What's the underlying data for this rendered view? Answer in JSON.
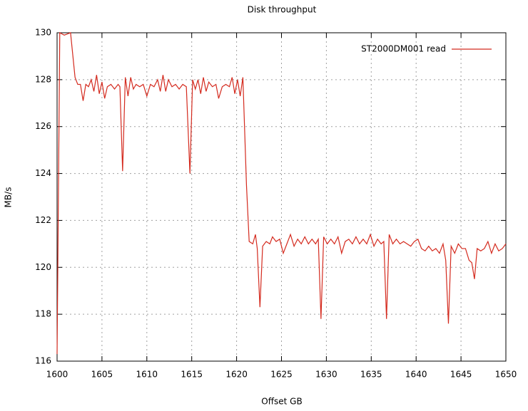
{
  "chart_data": {
    "type": "line",
    "title": "Disk throughput",
    "x_label": "Offset GB",
    "y_label": "MB/s",
    "x": [
      1600,
      1600.3,
      1600.8,
      1601.5,
      1602,
      1602.3,
      1602.6,
      1602.9,
      1603.2,
      1603.5,
      1603.8,
      1604.1,
      1604.4,
      1604.7,
      1605,
      1605.3,
      1605.6,
      1606,
      1606.4,
      1606.8,
      1607,
      1607.3,
      1607.6,
      1607.9,
      1608.2,
      1608.5,
      1608.8,
      1609.2,
      1609.6,
      1610,
      1610.4,
      1610.8,
      1611.2,
      1611.5,
      1611.8,
      1612.1,
      1612.4,
      1612.8,
      1613.2,
      1613.6,
      1614,
      1614.4,
      1614.8,
      1615.1,
      1615.4,
      1615.7,
      1616,
      1616.3,
      1616.6,
      1616.9,
      1617.3,
      1617.7,
      1618,
      1618.4,
      1618.8,
      1619.2,
      1619.5,
      1619.8,
      1620.1,
      1620.4,
      1620.7,
      1621.1,
      1621.4,
      1621.8,
      1622.1,
      1622.3,
      1622.6,
      1622.9,
      1623.3,
      1623.7,
      1624,
      1624.4,
      1624.8,
      1625.2,
      1625.6,
      1626,
      1626.4,
      1626.8,
      1627.2,
      1627.6,
      1628,
      1628.4,
      1628.8,
      1629.1,
      1629.4,
      1629.7,
      1630.1,
      1630.5,
      1630.9,
      1631.3,
      1631.7,
      1632.1,
      1632.5,
      1632.9,
      1633.3,
      1633.7,
      1634.1,
      1634.5,
      1634.9,
      1635.3,
      1635.7,
      1636.1,
      1636.4,
      1636.7,
      1637,
      1637.4,
      1637.8,
      1638.2,
      1638.6,
      1639,
      1639.4,
      1639.8,
      1640.2,
      1640.6,
      1641,
      1641.4,
      1641.8,
      1642.2,
      1642.6,
      1643,
      1643.3,
      1643.6,
      1643.9,
      1644.3,
      1644.7,
      1645.1,
      1645.5,
      1645.9,
      1646.2,
      1646.5,
      1646.8,
      1647.2,
      1647.6,
      1648,
      1648.4,
      1648.8,
      1649.2,
      1649.6,
      1650
    ],
    "series": [
      {
        "name": "ST2000DM001 read",
        "color": "#d42a1e",
        "values": [
          116.3,
          130,
          129.9,
          130,
          128.1,
          127.8,
          127.8,
          127.1,
          127.8,
          127.7,
          128,
          127.5,
          128.2,
          127.4,
          127.9,
          127.2,
          127.7,
          127.8,
          127.6,
          127.8,
          127.7,
          124.1,
          128.1,
          127.3,
          128.1,
          127.6,
          127.8,
          127.7,
          127.8,
          127.3,
          127.8,
          127.7,
          128,
          127.5,
          128.2,
          127.5,
          128,
          127.7,
          127.8,
          127.6,
          127.8,
          127.7,
          124,
          128,
          127.6,
          128,
          127.4,
          128.1,
          127.5,
          127.9,
          127.7,
          127.8,
          127.2,
          127.7,
          127.8,
          127.7,
          128.1,
          127.4,
          128,
          127.3,
          128.1,
          123.5,
          121.1,
          121,
          121.4,
          120.8,
          118.3,
          120.9,
          121.1,
          121,
          121.3,
          121.1,
          121.2,
          120.6,
          121,
          121.4,
          120.9,
          121.2,
          121,
          121.3,
          121,
          121.2,
          121,
          121.2,
          117.8,
          121.3,
          121,
          121.2,
          121,
          121.3,
          120.6,
          121.1,
          121.2,
          121,
          121.3,
          121,
          121.2,
          121,
          121.4,
          120.9,
          121.2,
          121,
          121.1,
          117.8,
          121.4,
          121,
          121.2,
          121,
          121.1,
          121,
          120.9,
          121.1,
          121.2,
          120.8,
          120.7,
          120.9,
          120.7,
          120.8,
          120.6,
          121,
          120.3,
          117.6,
          120.9,
          120.6,
          121,
          120.8,
          120.8,
          120.3,
          120.2,
          119.5,
          120.8,
          120.7,
          120.8,
          121.1,
          120.6,
          121,
          120.7,
          120.8,
          121
        ]
      }
    ],
    "xlim": [
      1600,
      1650
    ],
    "xticks": [
      1600,
      1605,
      1610,
      1615,
      1620,
      1625,
      1630,
      1635,
      1640,
      1645,
      1650
    ],
    "ylim": [
      116,
      130
    ],
    "yticks": [
      116,
      118,
      120,
      122,
      124,
      126,
      128,
      130
    ],
    "grid": true,
    "legend": "upper right"
  }
}
